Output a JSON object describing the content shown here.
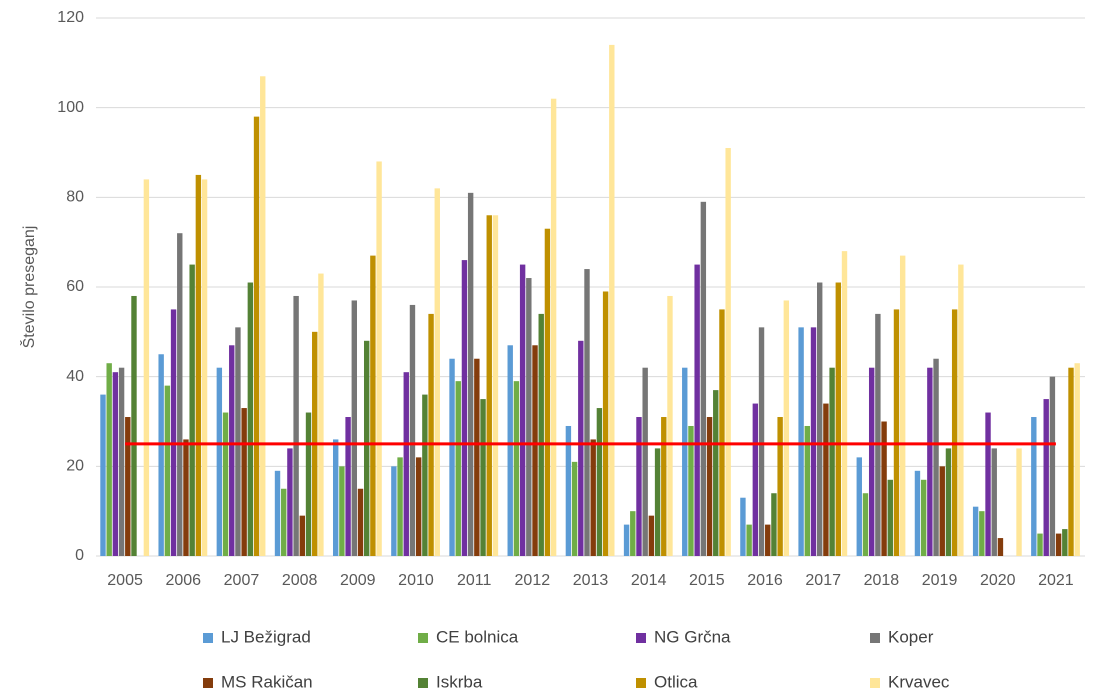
{
  "chart_data": {
    "type": "bar",
    "y_label": "Število preseganj",
    "categories": [
      "2005",
      "2006",
      "2007",
      "2008",
      "2009",
      "2010",
      "2011",
      "2012",
      "2013",
      "2014",
      "2015",
      "2016",
      "2017",
      "2018",
      "2019",
      "2020",
      "2021"
    ],
    "series": [
      {
        "name": "LJ Bežigrad",
        "color": "#5b9bd5",
        "values": [
          36,
          45,
          42,
          19,
          26,
          20,
          44,
          47,
          29,
          7,
          42,
          13,
          51,
          22,
          19,
          11,
          31
        ]
      },
      {
        "name": "CE bolnica",
        "color": "#70ad47",
        "values": [
          43,
          38,
          32,
          15,
          20,
          22,
          39,
          39,
          21,
          10,
          29,
          7,
          29,
          14,
          17,
          10,
          5
        ]
      },
      {
        "name": "NG Grčna",
        "color": "#7030a0",
        "values": [
          41,
          55,
          47,
          24,
          31,
          41,
          66,
          65,
          48,
          31,
          65,
          34,
          51,
          42,
          42,
          32,
          35
        ]
      },
      {
        "name": "Koper",
        "color": "#767676",
        "values": [
          42,
          72,
          51,
          58,
          57,
          56,
          81,
          62,
          64,
          42,
          79,
          51,
          61,
          54,
          44,
          24,
          40
        ]
      },
      {
        "name": "MS Rakičan",
        "color": "#843c0c",
        "values": [
          31,
          26,
          33,
          9,
          15,
          22,
          44,
          47,
          26,
          9,
          31,
          7,
          34,
          30,
          20,
          4,
          5
        ]
      },
      {
        "name": "Iskrba",
        "color": "#548235",
        "values": [
          58,
          65,
          61,
          32,
          48,
          36,
          35,
          54,
          33,
          24,
          37,
          14,
          42,
          17,
          24,
          null,
          6
        ]
      },
      {
        "name": "Otlica",
        "color": "#bf9000",
        "values": [
          null,
          85,
          98,
          50,
          67,
          54,
          76,
          73,
          59,
          31,
          55,
          31,
          61,
          55,
          55,
          null,
          42
        ]
      },
      {
        "name": "Krvavec",
        "color": "#ffe699",
        "values": [
          84,
          84,
          107,
          63,
          88,
          82,
          76,
          102,
          114,
          58,
          91,
          57,
          68,
          67,
          65,
          24,
          43
        ]
      }
    ],
    "reference_line": {
      "value": 25,
      "color": "#ff0000"
    },
    "ylim": [
      0,
      120
    ],
    "yticks": [
      0,
      20,
      40,
      60,
      80,
      100,
      120
    ],
    "grid": true
  }
}
